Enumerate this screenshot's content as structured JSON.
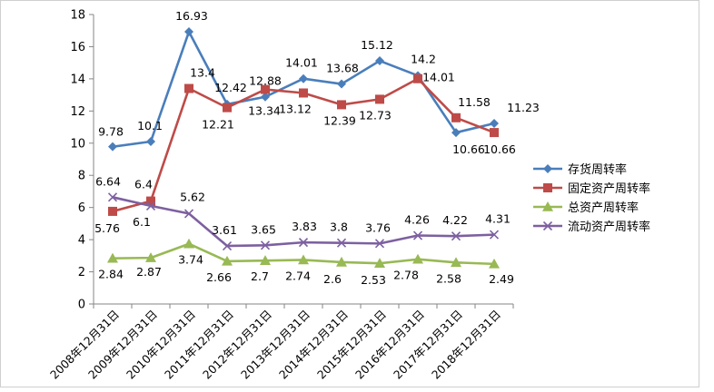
{
  "chart_data": {
    "type": "line",
    "categories": [
      "2008年12月31日",
      "2009年12月31日",
      "2010年12月31日",
      "2011年12月31日",
      "2012年12月31日",
      "2013年12月31日",
      "2014年12月31日",
      "2015年12月31日",
      "2016年12月31日",
      "2017年12月31日",
      "2018年12月31日"
    ],
    "ylim": [
      0,
      18
    ],
    "yticks": [
      "0",
      "2",
      "4",
      "6",
      "8",
      "10",
      "12",
      "14",
      "16",
      "18"
    ],
    "grid": false,
    "legend_position": "right",
    "series": [
      {
        "name": "存货周转率",
        "color": "#4a7ebb",
        "marker": "diamond",
        "values": [
          9.78,
          10.1,
          16.93,
          12.42,
          12.88,
          14.01,
          13.68,
          15.12,
          14.2,
          10.66,
          11.23
        ],
        "labels": [
          "9.78",
          "10.1",
          "16.93",
          "12.42",
          "12.88",
          "14.01",
          "13.68",
          "15.12",
          "14.2",
          "10.66",
          "11.23"
        ]
      },
      {
        "name": "固定资产周转率",
        "color": "#be4b48",
        "marker": "square",
        "values": [
          5.76,
          6.4,
          13.4,
          12.21,
          13.34,
          13.12,
          12.39,
          12.73,
          14.01,
          11.58,
          10.66
        ],
        "labels": [
          "5.76",
          "6.4",
          "13.4",
          "12.21",
          "13.34",
          "13.12",
          "12.39",
          "12.73",
          "14.01",
          "11.58",
          "10.66"
        ]
      },
      {
        "name": "总资产周转率",
        "color": "#98b954",
        "marker": "triangle",
        "values": [
          2.84,
          2.87,
          3.74,
          2.66,
          2.7,
          2.74,
          2.6,
          2.53,
          2.78,
          2.58,
          2.49
        ],
        "labels": [
          "2.84",
          "2.87",
          "3.74",
          "2.66",
          "2.7",
          "2.74",
          "2.6",
          "2.53",
          "2.78",
          "2.58",
          "2.49"
        ]
      },
      {
        "name": "流动资产周转率",
        "color": "#7d60a0",
        "marker": "x",
        "values": [
          6.64,
          6.1,
          5.62,
          3.61,
          3.65,
          3.83,
          3.8,
          3.76,
          4.26,
          4.22,
          4.31
        ],
        "labels": [
          "6.64",
          "6.1",
          "5.62",
          "3.61",
          "3.65",
          "3.83",
          "3.8",
          "3.76",
          "4.26",
          "4.22",
          "4.31"
        ]
      }
    ]
  }
}
